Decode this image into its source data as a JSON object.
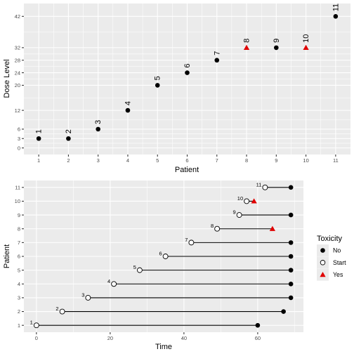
{
  "chart_data": [
    {
      "type": "scatter",
      "title": "",
      "xlabel": "Patient",
      "ylabel": "Dose Level",
      "xlim": [
        0.5,
        11.5
      ],
      "ylim": [
        -2.1,
        46.1
      ],
      "x_ticks": [
        1,
        2,
        3,
        4,
        5,
        6,
        7,
        8,
        9,
        10,
        11
      ],
      "y_ticks": [
        0,
        3,
        6,
        12,
        20,
        24,
        28,
        32,
        42
      ],
      "grid": true,
      "points": [
        {
          "x": 1,
          "y": 3,
          "label": "1",
          "toxicity": "No"
        },
        {
          "x": 2,
          "y": 3,
          "label": "2",
          "toxicity": "No"
        },
        {
          "x": 3,
          "y": 6,
          "label": "3",
          "toxicity": "No"
        },
        {
          "x": 4,
          "y": 12,
          "label": "4",
          "toxicity": "No"
        },
        {
          "x": 5,
          "y": 20,
          "label": "5",
          "toxicity": "No"
        },
        {
          "x": 6,
          "y": 24,
          "label": "6",
          "toxicity": "No"
        },
        {
          "x": 7,
          "y": 28,
          "label": "7",
          "toxicity": "No"
        },
        {
          "x": 8,
          "y": 32,
          "label": "8",
          "toxicity": "Yes"
        },
        {
          "x": 9,
          "y": 32,
          "label": "9",
          "toxicity": "No"
        },
        {
          "x": 10,
          "y": 32,
          "label": "10",
          "toxicity": "Yes"
        },
        {
          "x": 11,
          "y": 42,
          "label": "11",
          "toxicity": "No"
        }
      ]
    },
    {
      "type": "scatter",
      "title": "",
      "xlabel": "Time",
      "ylabel": "Patient",
      "xlim": [
        -3.4,
        72.4
      ],
      "ylim": [
        0.5,
        11.5
      ],
      "x_ticks": [
        0,
        20,
        40,
        60
      ],
      "y_ticks": [
        1,
        2,
        3,
        4,
        5,
        6,
        7,
        8,
        9,
        10,
        11
      ],
      "grid": true,
      "segments": [
        {
          "patient": 1,
          "start": 0,
          "end": 60,
          "label": "1",
          "toxicity": "No"
        },
        {
          "patient": 2,
          "start": 7,
          "end": 67,
          "label": "2",
          "toxicity": "No"
        },
        {
          "patient": 3,
          "start": 14,
          "end": 69,
          "label": "3",
          "toxicity": "No"
        },
        {
          "patient": 4,
          "start": 21,
          "end": 69,
          "label": "4",
          "toxicity": "No"
        },
        {
          "patient": 5,
          "start": 28,
          "end": 69,
          "label": "5",
          "toxicity": "No"
        },
        {
          "patient": 6,
          "start": 35,
          "end": 69,
          "label": "6",
          "toxicity": "No"
        },
        {
          "patient": 7,
          "start": 42,
          "end": 69,
          "label": "7",
          "toxicity": "No"
        },
        {
          "patient": 8,
          "start": 49,
          "end": 64,
          "label": "8",
          "toxicity": "Yes"
        },
        {
          "patient": 9,
          "start": 55,
          "end": 69,
          "label": "9",
          "toxicity": "No"
        },
        {
          "patient": 10,
          "start": 57,
          "end": 59,
          "label": "10",
          "toxicity": "Yes"
        },
        {
          "patient": 11,
          "start": 62,
          "end": 69,
          "label": "11",
          "toxicity": "No"
        }
      ]
    }
  ],
  "legend": {
    "title": "Toxicity",
    "placement": "right",
    "items": [
      {
        "label": "No",
        "shape": "filled-circle"
      },
      {
        "label": "Start",
        "shape": "open-circle"
      },
      {
        "label": "Yes",
        "shape": "triangle"
      }
    ]
  },
  "colors": {
    "no": "#000000",
    "start_fill": "#ffffff",
    "yes": "#e00000"
  }
}
